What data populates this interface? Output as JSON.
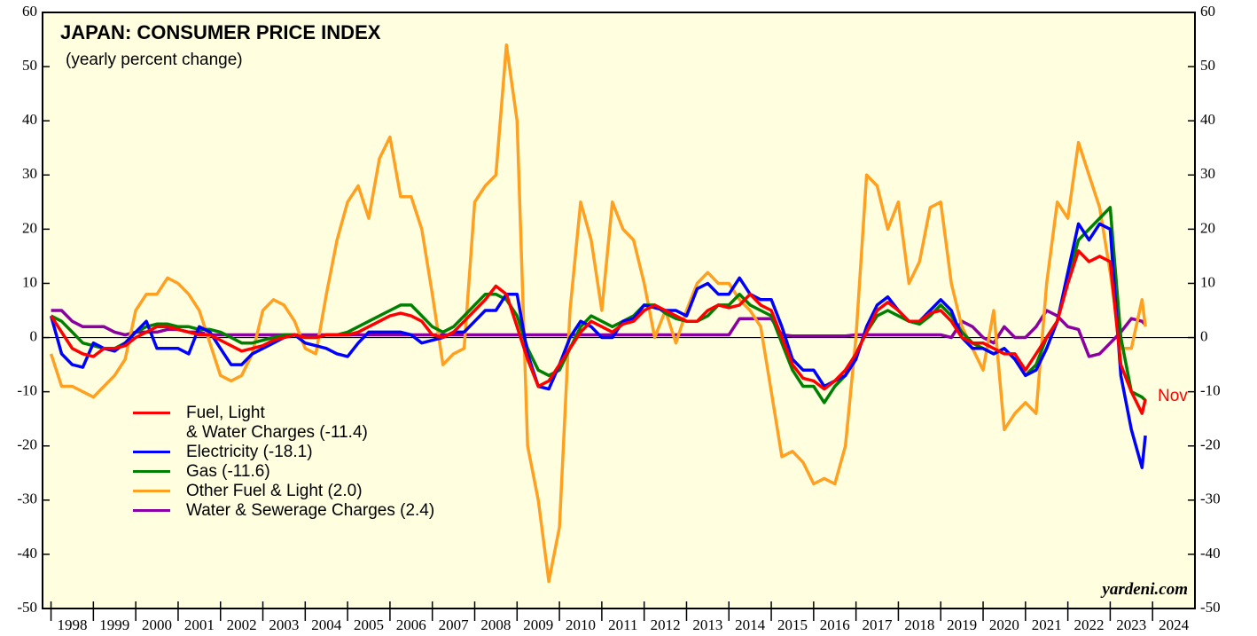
{
  "chart_data": {
    "type": "line",
    "title": "JAPAN: CONSUMER PRICE INDEX",
    "subtitle": "(yearly percent change)",
    "source": "yardeni.com",
    "annotation": "Nov",
    "x": [
      1998,
      1998.25,
      1998.5,
      1998.75,
      1999,
      1999.25,
      1999.5,
      1999.75,
      2000,
      2000.25,
      2000.5,
      2000.75,
      2001,
      2001.25,
      2001.5,
      2001.75,
      2002,
      2002.25,
      2002.5,
      2002.75,
      2003,
      2003.25,
      2003.5,
      2003.75,
      2004,
      2004.25,
      2004.5,
      2004.75,
      2005,
      2005.25,
      2005.5,
      2005.75,
      2006,
      2006.25,
      2006.5,
      2006.75,
      2007,
      2007.25,
      2007.5,
      2007.75,
      2008,
      2008.25,
      2008.5,
      2008.75,
      2009,
      2009.25,
      2009.5,
      2009.75,
      2010,
      2010.25,
      2010.5,
      2010.75,
      2011,
      2011.25,
      2011.5,
      2011.75,
      2012,
      2012.25,
      2012.5,
      2012.75,
      2013,
      2013.25,
      2013.5,
      2013.75,
      2014,
      2014.25,
      2014.5,
      2014.75,
      2015,
      2015.25,
      2015.5,
      2015.75,
      2016,
      2016.25,
      2016.5,
      2016.75,
      2017,
      2017.25,
      2017.5,
      2017.75,
      2018,
      2018.25,
      2018.5,
      2018.75,
      2019,
      2019.25,
      2019.5,
      2019.75,
      2020,
      2020.25,
      2020.5,
      2020.75,
      2021,
      2021.25,
      2021.5,
      2021.75,
      2022,
      2022.25,
      2022.5,
      2022.75,
      2023,
      2023.25,
      2023.5,
      2023.75,
      2023.83
    ],
    "series": [
      {
        "name": "Fuel, Light\n& Water Charges (-11.4)",
        "color": "#ff0000",
        "values": [
          4,
          1,
          -2,
          -3,
          -3.5,
          -2,
          -2,
          -1.5,
          0,
          1,
          2,
          2,
          1.5,
          1,
          0.5,
          0.5,
          -0.5,
          -1.5,
          -2.5,
          -2,
          -1.5,
          -0.5,
          0,
          0.5,
          0,
          0,
          0.5,
          0.5,
          0.5,
          1,
          2,
          3,
          4,
          4.5,
          4,
          3,
          0.5,
          0,
          1,
          3,
          5,
          7,
          9.5,
          8,
          2,
          -4,
          -9,
          -8,
          -5,
          -2,
          1,
          3,
          2,
          1,
          2.5,
          3,
          5,
          6,
          5,
          4,
          3,
          3,
          5,
          6,
          5.5,
          6,
          8,
          6,
          5,
          0,
          -5,
          -7.5,
          -8,
          -9.5,
          -8,
          -6,
          -3,
          1,
          5,
          6.5,
          5,
          3,
          3,
          4.5,
          5,
          3,
          0,
          -1,
          -1,
          -2,
          -3,
          -3,
          -6,
          -3,
          0,
          3,
          10,
          16,
          14,
          15,
          14,
          -5,
          -10,
          -14,
          -11.4
        ]
      },
      {
        "name": "Electricity (-18.1)",
        "color": "#0000ff",
        "values": [
          4,
          -3,
          -5,
          -5.5,
          -1,
          -2,
          -2.5,
          -1,
          1,
          3,
          -2,
          -2,
          -2,
          -3,
          2,
          1,
          -2,
          -5,
          -5,
          -3,
          -2,
          -1,
          0,
          0.5,
          -1,
          -1.5,
          -2,
          -3,
          -3.5,
          -1,
          1,
          1,
          1,
          1,
          0.5,
          -1,
          -0.5,
          0,
          1,
          1,
          3,
          5,
          5,
          8,
          8,
          -3,
          -9,
          -9.5,
          -5,
          0,
          3,
          2,
          0,
          0,
          3,
          3.5,
          6,
          5.5,
          5,
          5,
          4,
          9,
          10,
          8,
          8,
          11,
          8,
          7,
          7,
          2,
          -4,
          -6,
          -6,
          -9,
          -8,
          -7,
          -4,
          2,
          6,
          7.5,
          5,
          3,
          3,
          5,
          7,
          5,
          0,
          -2,
          -2,
          -3,
          -2,
          -4,
          -7,
          -6,
          -2,
          3,
          12,
          21,
          18,
          21,
          20,
          -7,
          -17,
          -24,
          -18.1
        ]
      },
      {
        "name": "Gas (-11.6)",
        "color": "#008000",
        "values": [
          4,
          3,
          1,
          -1,
          -1.5,
          -2,
          -2,
          -1,
          1,
          2,
          2.5,
          2.5,
          2,
          2,
          1.5,
          1.5,
          1,
          0,
          -1,
          -1,
          -0.5,
          0,
          0.5,
          0.5,
          0,
          0,
          0.5,
          0.5,
          1,
          2,
          3,
          4,
          5,
          6,
          6,
          4,
          2,
          1,
          2,
          4,
          6,
          8,
          8,
          7,
          4,
          -2,
          -6,
          -7,
          -6,
          -2,
          2,
          4,
          3,
          2,
          3,
          4,
          6,
          6,
          4.5,
          3.5,
          3,
          3,
          4,
          6,
          6,
          8,
          6,
          5,
          4,
          -1,
          -6,
          -9,
          -9,
          -12,
          -9,
          -7,
          -3,
          1,
          4,
          5,
          4,
          3,
          2.5,
          4,
          6,
          4,
          1,
          -1,
          -2,
          -3,
          -2,
          -4,
          -7,
          -5,
          0,
          3,
          11,
          18,
          20,
          22,
          24,
          0,
          -10,
          -11,
          -11.6
        ]
      },
      {
        "name": "Other Fuel & Light (2.0)",
        "color": "#ffa020",
        "values": [
          -3,
          -9,
          -9,
          -10,
          -11,
          -9,
          -7,
          -4,
          5,
          8,
          8,
          11,
          10,
          8,
          5,
          -1,
          -7,
          -8,
          -7,
          -3,
          5,
          7,
          6,
          3,
          -2,
          -3,
          8,
          18,
          25,
          28,
          22,
          33,
          37,
          26,
          26,
          20,
          8,
          -5,
          -3,
          -2,
          25,
          28,
          30,
          54,
          40,
          -20,
          -30,
          -45,
          -35,
          5,
          25,
          18,
          5,
          25,
          20,
          18,
          10,
          0,
          5,
          -1,
          5,
          10,
          12,
          10,
          10,
          7,
          5,
          2,
          -10,
          -22,
          -21,
          -23,
          -27,
          -26,
          -27,
          -20,
          0,
          30,
          28,
          20,
          25,
          10,
          14,
          24,
          25,
          10,
          2,
          -2,
          -6,
          5,
          -17,
          -14,
          -12,
          -14,
          10,
          25,
          22,
          36,
          30,
          24,
          12,
          -2,
          -2,
          7,
          2.0
        ]
      },
      {
        "name": "Water & Sewerage Charges (2.4)",
        "color": "#8b00a0",
        "values": [
          5,
          5,
          3,
          2,
          2,
          2,
          1,
          0.5,
          1,
          1,
          1,
          1.5,
          1.5,
          1,
          1,
          0.5,
          0.5,
          0.5,
          0.5,
          0.5,
          0.5,
          0.5,
          0.5,
          0.5,
          0.5,
          0.5,
          0.5,
          0.5,
          0.5,
          0.5,
          0.5,
          0.5,
          0.5,
          0.5,
          0.5,
          0.5,
          0.5,
          0.5,
          0.5,
          0.5,
          0.5,
          0.5,
          0.5,
          0.5,
          0.5,
          0.5,
          0.5,
          0.5,
          0.5,
          0.5,
          0.5,
          0.5,
          0.5,
          0.5,
          0.5,
          0.5,
          0.5,
          0.5,
          0.5,
          0.5,
          0.5,
          0.5,
          0.5,
          0.5,
          0.5,
          3.5,
          3.5,
          3.5,
          3.5,
          0.5,
          0.3,
          0.3,
          0.3,
          0.3,
          0.3,
          0.3,
          0.5,
          0.5,
          0.5,
          0.5,
          0.5,
          0.5,
          0.5,
          0.5,
          0.5,
          0,
          3,
          2,
          0,
          -1,
          2,
          0,
          0,
          2,
          5,
          4,
          2,
          1.5,
          -3.5,
          -3,
          -1,
          1,
          3.5,
          3,
          2.4
        ]
      }
    ],
    "xlim": [
      1997.8,
      2025
    ],
    "xticks": [
      1998,
      1999,
      2000,
      2001,
      2002,
      2003,
      2004,
      2005,
      2006,
      2007,
      2008,
      2009,
      2010,
      2011,
      2012,
      2013,
      2014,
      2015,
      2016,
      2017,
      2018,
      2019,
      2020,
      2021,
      2022,
      2023,
      2024
    ],
    "ylim": [
      -50,
      60
    ],
    "yticks": [
      -50,
      -40,
      -30,
      -20,
      -10,
      0,
      10,
      20,
      30,
      40,
      50,
      60
    ],
    "zero_line": true
  }
}
